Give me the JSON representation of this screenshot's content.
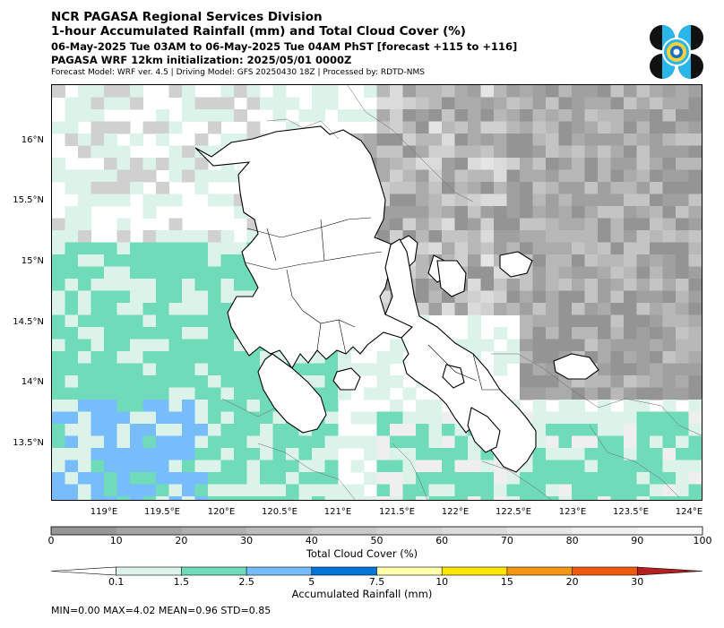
{
  "header": {
    "line1": "NCR PAGASA Regional Services Division",
    "line2": "1-hour Accumulated Rainfall (mm) and Total Cloud Cover (%)",
    "line3": "06-May-2025 Tue 03AM to 06-May-2025 Tue 04AM PhST [forecast +115 to +116]",
    "line4": "PAGASA WRF 12km initialization: 2025/05/01 0000Z",
    "line5": "Forecast Model: WRF ver. 4.5 | Driving Model: GFS 20250430 18Z | Processed by: RDTD-NMS"
  },
  "logo": {
    "icon": "pagasa-seal-icon"
  },
  "map": {
    "lat_ticks": [
      "16°N",
      "15.5°N",
      "15°N",
      "14.5°N",
      "14°N",
      "13.5°N"
    ],
    "lon_ticks": [
      "119°E",
      "119.5°E",
      "120°E",
      "120.5°E",
      "121°E",
      "121.5°E",
      "122°E",
      "122.5°E",
      "123°E",
      "123.5°E",
      "124°E"
    ]
  },
  "cloud_colorbar": {
    "ticks": [
      "0",
      "10",
      "20",
      "30",
      "40",
      "50",
      "60",
      "70",
      "80",
      "90",
      "100"
    ],
    "colors": [
      "#969696",
      "#a3a3a3",
      "#afafaf",
      "#bcbcbc",
      "#c8c8c8",
      "#d3d3d3",
      "#dcdcdc",
      "#e6e6e6",
      "#efefef",
      "#f8f8f8"
    ],
    "label": "Total Cloud Cover (%)"
  },
  "rain_colorbar": {
    "ticks": [
      "0.1",
      "1.5",
      "2.5",
      "5",
      "7.5",
      "10",
      "15",
      "20",
      "30"
    ],
    "colors": [
      "#ffffff",
      "#dcf3ea",
      "#6fdbb9",
      "#78bdfb",
      "#0074d8",
      "#ffffad",
      "#fde600",
      "#f49713",
      "#ef5b0e",
      "#b51f1f"
    ],
    "label": "Accumulated Rainfall (mm)"
  },
  "stats": "MIN=0.00   MAX=4.02   MEAN=0.96   STD=0.85"
}
